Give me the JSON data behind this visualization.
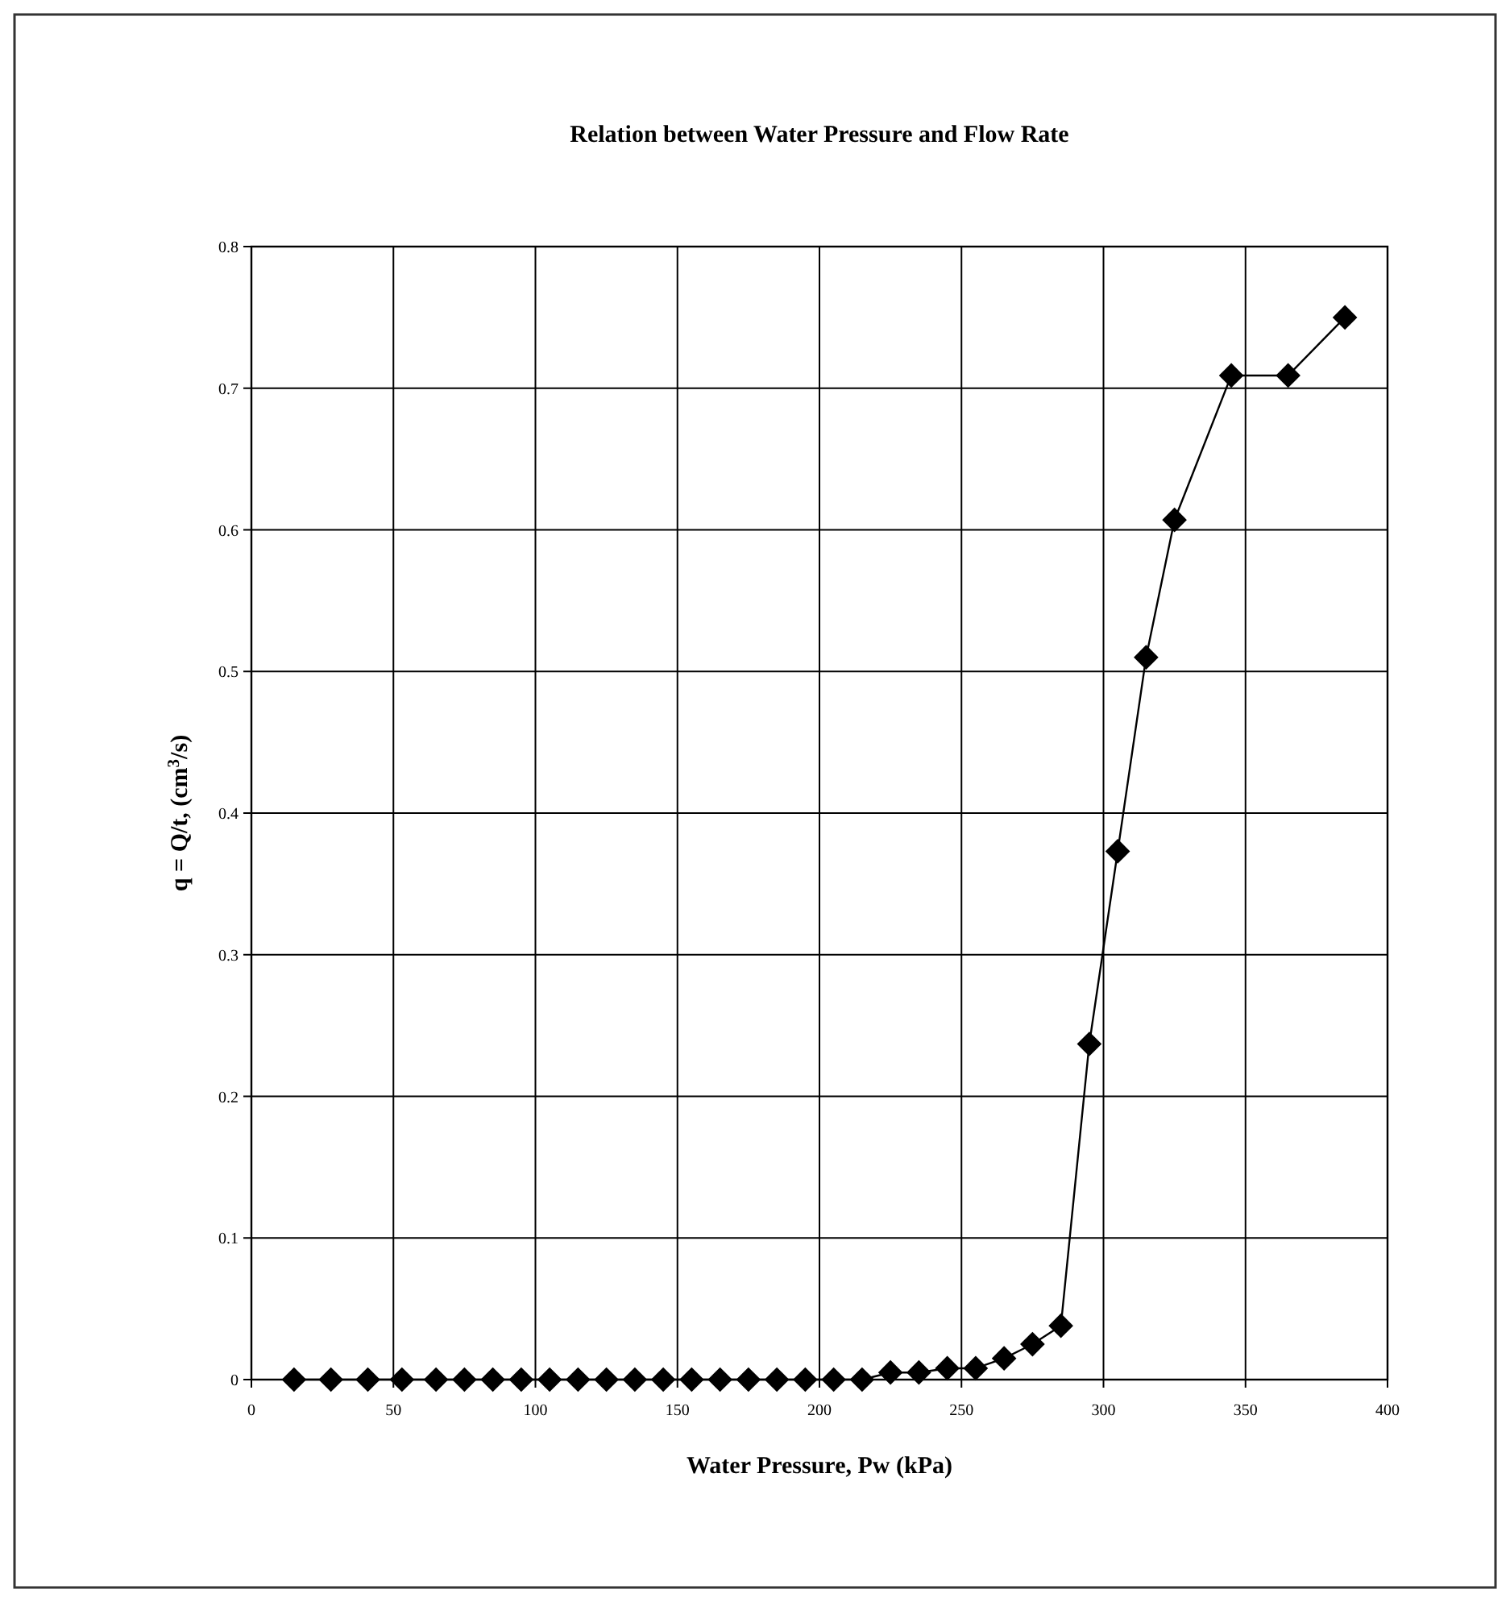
{
  "chart_data": {
    "type": "line",
    "title": "Relation between Water Pressure and Flow Rate",
    "xlabel": "Water Pressure, Pw (kPa)",
    "ylabel": "q = Q/t, (cm$^{3}$/s)",
    "x": [
      15,
      28,
      41,
      53,
      65,
      75,
      85,
      95,
      105,
      115,
      125,
      135,
      145,
      155,
      165,
      175,
      185,
      195,
      205,
      215,
      225,
      235,
      245,
      255,
      265,
      275,
      285,
      295,
      305,
      315,
      325,
      345,
      365,
      385
    ],
    "series": [
      {
        "color": "#000000",
        "values": [
          0,
          0,
          0,
          0,
          0,
          0,
          0,
          0,
          0,
          0,
          0,
          0,
          0,
          0,
          0,
          0,
          0,
          0,
          0,
          0,
          0.005,
          0.005,
          0.008,
          0.008,
          0.015,
          0.025,
          0.038,
          0.237,
          0.373,
          0.51,
          0.607,
          0.709,
          0.709,
          0.75
        ]
      }
    ],
    "xlim": [
      0,
      400
    ],
    "xticks": [
      0,
      50,
      100,
      150,
      200,
      250,
      300,
      350,
      400
    ],
    "ylim": [
      0,
      0.8
    ],
    "yticks": [
      0,
      0.1,
      0.2,
      0.3,
      0.4,
      0.5,
      0.6,
      0.7,
      0.8
    ],
    "grid": true,
    "marker": "diamond",
    "line_style": "solid"
  }
}
